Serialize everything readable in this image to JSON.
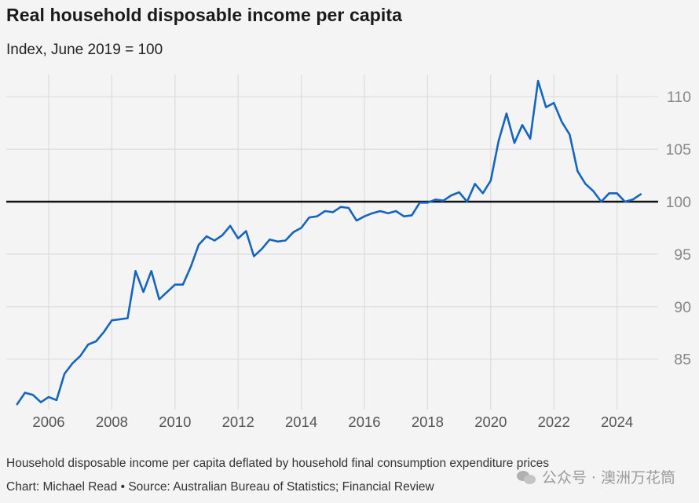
{
  "chart_data": {
    "type": "line",
    "title": "Real household disposable income per capita",
    "subtitle": "Index, June 2019 = 100",
    "footnote": "Household disposable income per capita deflated by household final consumption expenditure prices",
    "credit": "Chart: Michael Read • Source: Australian Bureau of Statistics; Financial Review",
    "xlim": [
      2005,
      2025.25
    ],
    "ylim": [
      80.5,
      112
    ],
    "x_ticks": [
      2006,
      2008,
      2010,
      2012,
      2014,
      2016,
      2018,
      2020,
      2022,
      2024
    ],
    "x_tick_labels": [
      "2006",
      "2008",
      "2010",
      "2012",
      "2014",
      "2016",
      "2018",
      "2020",
      "2022",
      "2024"
    ],
    "y_ticks": [
      85,
      90,
      95,
      100,
      105,
      110
    ],
    "y_tick_labels": [
      "85",
      "90",
      "95",
      "100",
      "105",
      "110"
    ],
    "reference_line": 100,
    "grid": true,
    "line_color": "#1565c0",
    "series": [
      {
        "x": [
          2005.0,
          2005.25,
          2005.5,
          2005.75,
          2006.0,
          2006.25,
          2006.5,
          2006.75,
          2007.0,
          2007.25,
          2007.5,
          2007.75,
          2008.0,
          2008.25,
          2008.5,
          2008.75,
          2009.0,
          2009.25,
          2009.5,
          2009.75,
          2010.0,
          2010.25,
          2010.5,
          2010.75,
          2011.0,
          2011.25,
          2011.5,
          2011.75,
          2012.0,
          2012.25,
          2012.5,
          2012.75,
          2013.0,
          2013.25,
          2013.5,
          2013.75,
          2014.0,
          2014.25,
          2014.5,
          2014.75,
          2015.0,
          2015.25,
          2015.5,
          2015.75,
          2016.0,
          2016.25,
          2016.5,
          2016.75,
          2017.0,
          2017.25,
          2017.5,
          2017.75,
          2018.0,
          2018.25,
          2018.5,
          2018.75,
          2019.0,
          2019.25,
          2019.5,
          2019.75,
          2020.0,
          2020.25,
          2020.5,
          2020.75,
          2021.0,
          2021.25,
          2021.5,
          2021.75,
          2022.0,
          2022.25,
          2022.5,
          2022.75,
          2023.0,
          2023.25,
          2023.5,
          2023.75,
          2024.0,
          2024.25,
          2024.5,
          2024.75,
          2025.0
        ],
        "values": [
          80.7,
          81.8,
          81.6,
          80.9,
          81.4,
          81.1,
          83.6,
          84.6,
          85.3,
          86.4,
          86.7,
          87.6,
          88.7,
          88.8,
          88.9,
          93.4,
          91.4,
          93.4,
          90.7,
          91.4,
          92.1,
          92.1,
          93.8,
          95.9,
          96.7,
          96.3,
          96.8,
          97.7,
          96.5,
          97.2,
          94.8,
          95.5,
          96.4,
          96.2,
          96.3,
          97.1,
          97.5,
          98.5,
          98.6,
          99.1,
          99.0,
          99.5,
          99.4,
          98.2,
          98.6,
          98.9,
          99.1,
          98.9,
          99.1,
          98.6,
          98.7,
          99.9,
          99.9,
          100.2,
          100.1,
          100.6,
          100.9,
          100.0,
          101.7,
          100.8,
          102.0,
          105.8,
          108.4,
          105.6,
          107.3,
          106.0,
          111.5,
          109.0,
          109.4,
          107.6,
          106.4,
          102.9,
          101.7,
          101.0,
          100.0,
          100.8,
          100.8,
          100.0,
          100.2,
          100.7,
          null
        ]
      }
    ]
  },
  "watermark": {
    "text": "公众号 · 澳洲万花筒",
    "icon": "wechat-icon"
  }
}
